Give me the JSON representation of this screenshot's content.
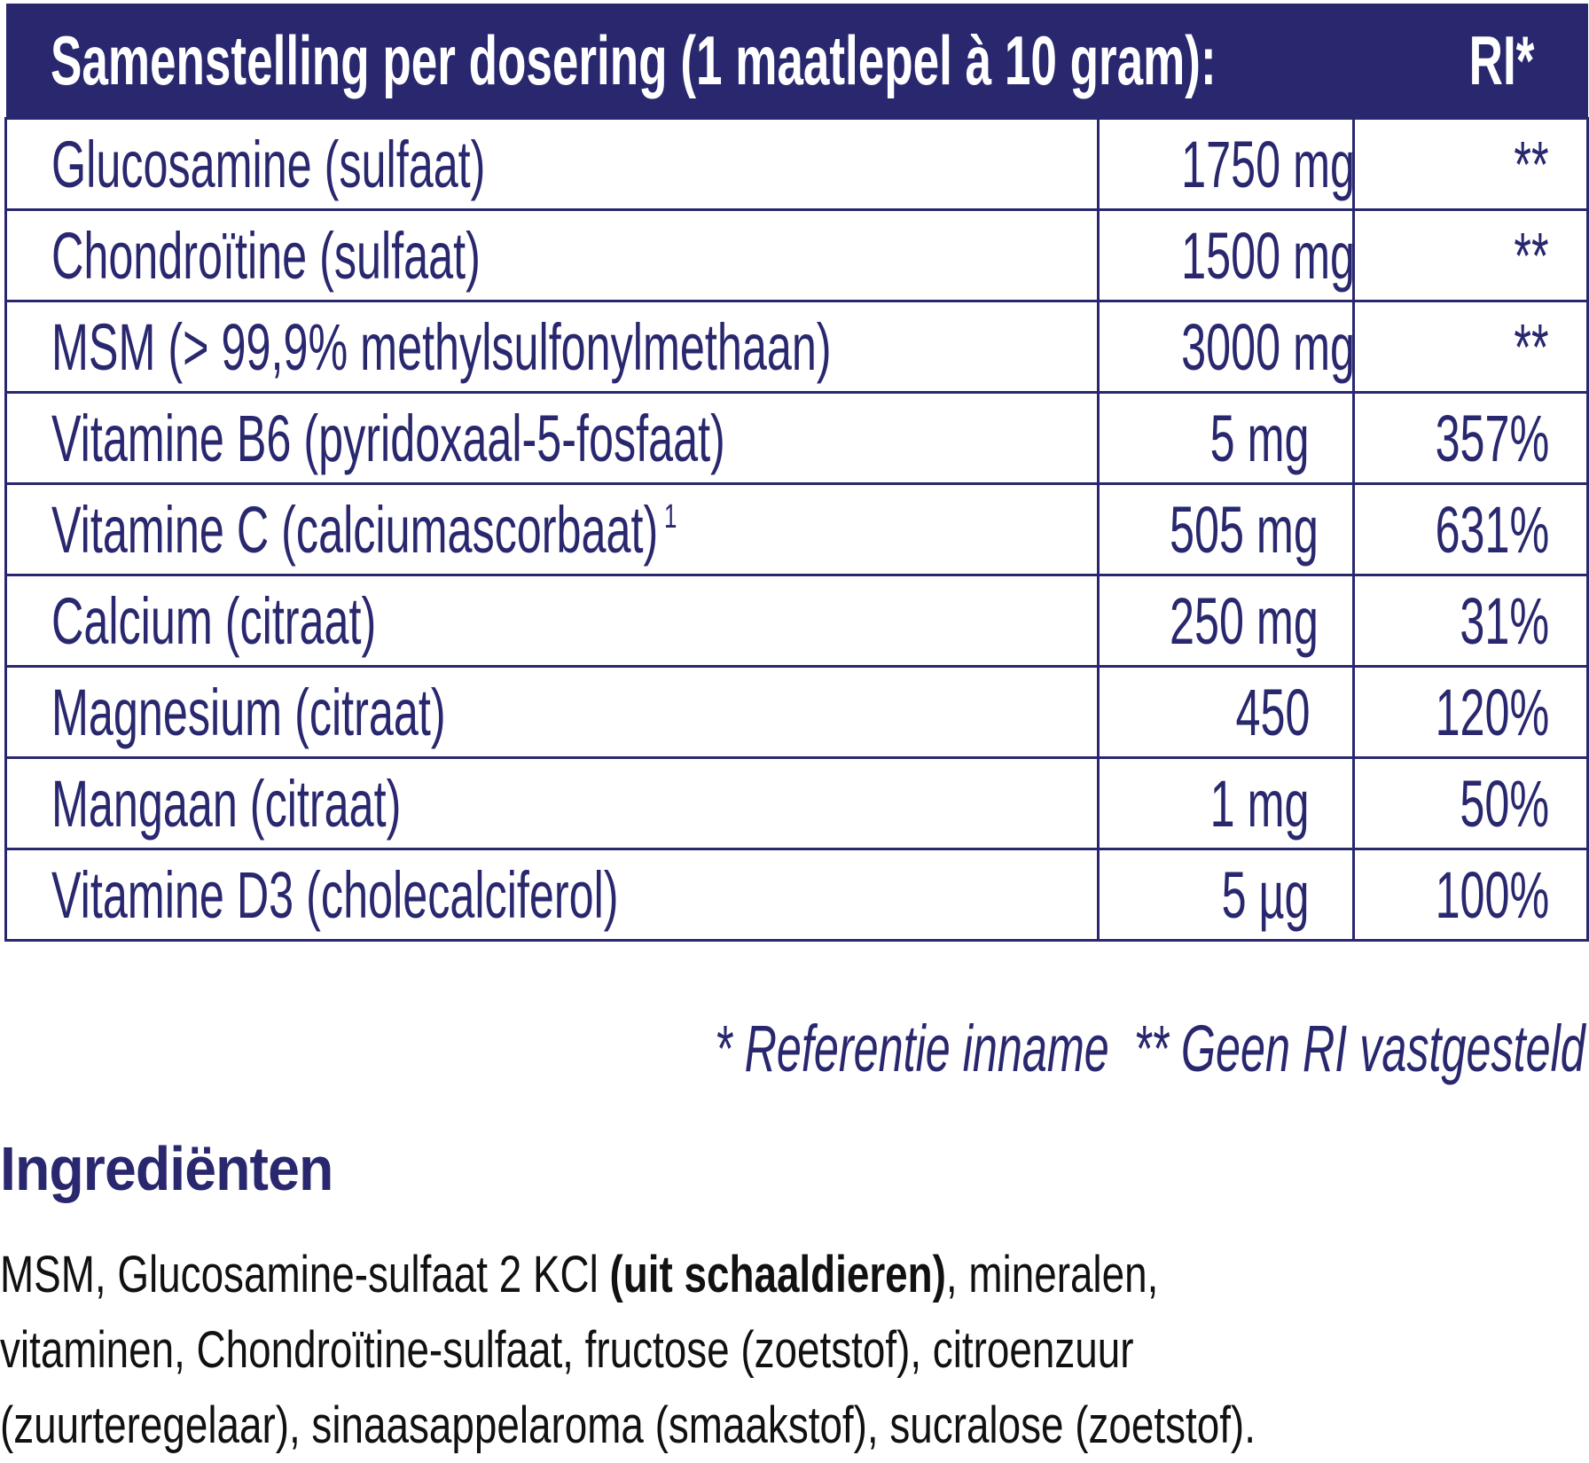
{
  "table": {
    "header": {
      "composition": "Samenstelling per dosering (1 maatlepel à 10 gram):",
      "ri": "RI*"
    },
    "rows": [
      {
        "name": "Glucosamine (sulfaat)",
        "amount": "1750 mg",
        "ri": "**"
      },
      {
        "name": "Chondroïtine (sulfaat)",
        "amount": "1500 mg",
        "ri": "**"
      },
      {
        "name": "MSM (> 99,9% methylsulfonylmethaan)",
        "amount": "3000 mg",
        "ri": "**"
      },
      {
        "name": "Vitamine B6 (pyridoxaal-5-fosfaat)",
        "amount": "5 mg",
        "ri": "357%"
      },
      {
        "name": "Vitamine C (calciumascorbaat)",
        "sup": "1",
        "amount": "505 mg",
        "ri": "631%"
      },
      {
        "name": "Calcium (citraat)",
        "amount": "250 mg",
        "ri": "31%"
      },
      {
        "name": "Magnesium (citraat)",
        "amount": "450",
        "ri": "120%"
      },
      {
        "name": "Mangaan (citraat)",
        "amount": "1 mg",
        "ri": "50%"
      },
      {
        "name": "Vitamine D3 (cholecalciferol)",
        "amount": "5 µg",
        "ri": "100%"
      }
    ]
  },
  "footnote": "* Referentie inname  ** Geen RI vastgesteld",
  "ingredients": {
    "title": "Ingrediënten",
    "line1_a": "MSM, Glucosamine-sulfaat 2 KCl ",
    "line1_bold": "(uit schaaldieren)",
    "line1_b": ", mineralen,",
    "line2": "vitaminen, Chondroïtine-sulfaat, fructose (zoetstof), citroenzuur",
    "line3": "(zuurteregelaar), sinaasappelaroma (smaakstof), sucralose (zoetstof)."
  },
  "colors": {
    "brand": "#29286f",
    "text": "#111111"
  }
}
